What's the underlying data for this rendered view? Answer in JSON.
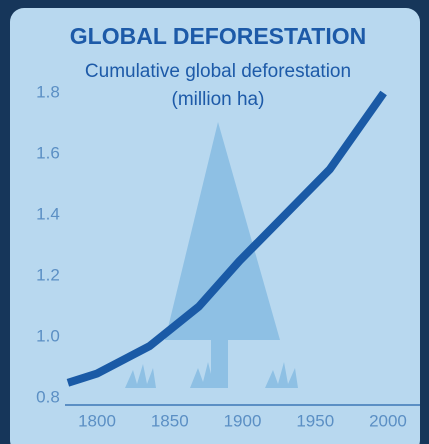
{
  "chart_data": {
    "type": "line",
    "title": "GLOBAL DEFORESTATION",
    "subtitle": [
      "Cumulative global deforestation",
      "(million ha)"
    ],
    "x": [
      1780,
      1800,
      1836,
      1870,
      1898,
      1925,
      1960,
      1997
    ],
    "values": [
      0.85,
      0.88,
      0.97,
      1.1,
      1.25,
      1.38,
      1.55,
      1.8
    ],
    "color": "#1a5aa6",
    "xlim": [
      1778,
      2022
    ],
    "xticks": [
      1800,
      1850,
      1900,
      1950,
      2000
    ],
    "ylim": [
      0.78,
      1.85
    ],
    "yticks": [
      {
        "value": 0.8,
        "label": "0.8"
      },
      {
        "value": 1.0,
        "label": "1.0"
      },
      {
        "value": 1.2,
        "label": "1.2"
      },
      {
        "value": 1.4,
        "label": "1.4"
      },
      {
        "value": 1.6,
        "label": "1.6"
      },
      {
        "value": 1.8,
        "label": "1.8"
      }
    ],
    "grid": false
  }
}
